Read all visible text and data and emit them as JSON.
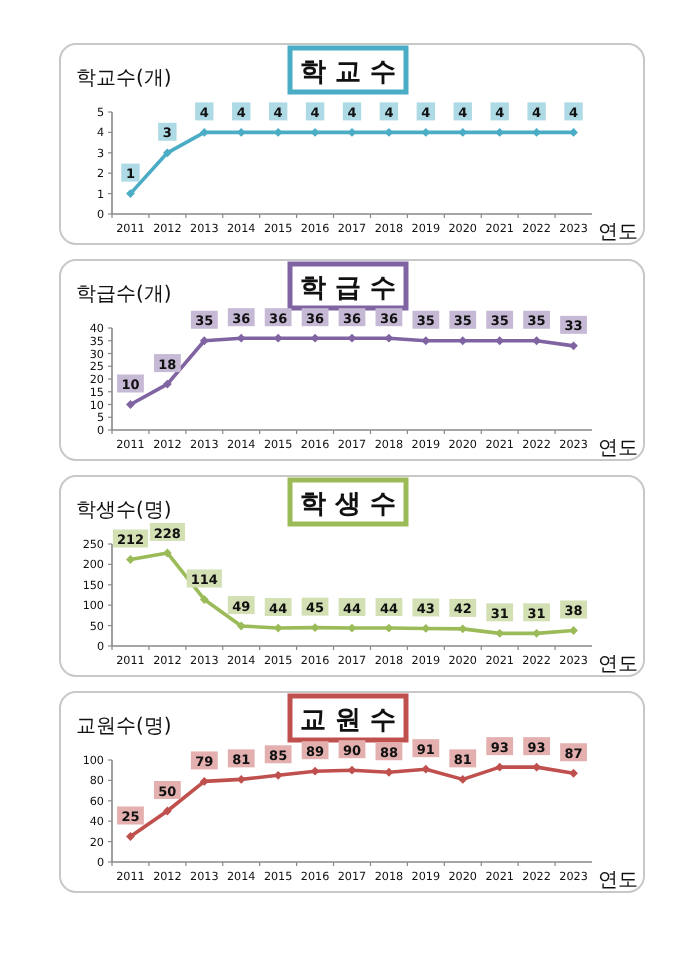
{
  "chart_data": [
    {
      "type": "line",
      "title": "학 교 수",
      "ylabel": "학교수(개)",
      "xlabel": "연도",
      "categories": [
        "2011",
        "2012",
        "2013",
        "2014",
        "2015",
        "2016",
        "2017",
        "2018",
        "2019",
        "2020",
        "2021",
        "2022",
        "2023"
      ],
      "series": [
        {
          "color": "#4bacc6",
          "values": [
            1,
            3,
            4,
            4,
            4,
            4,
            4,
            4,
            4,
            4,
            4,
            4,
            4
          ]
        }
      ],
      "ylim": [
        0,
        5
      ],
      "yticks": [
        0,
        1,
        2,
        3,
        4,
        5
      ],
      "data_labels": true,
      "marker": "diamond"
    },
    {
      "type": "line",
      "title": "학 급 수",
      "ylabel": "학급수(개)",
      "xlabel": "연도",
      "categories": [
        "2011",
        "2012",
        "2013",
        "2014",
        "2015",
        "2016",
        "2017",
        "2018",
        "2019",
        "2020",
        "2021",
        "2022",
        "2023"
      ],
      "series": [
        {
          "color": "#8064a2",
          "values": [
            10,
            18,
            35,
            36,
            36,
            36,
            36,
            36,
            35,
            35,
            35,
            35,
            33
          ]
        }
      ],
      "ylim": [
        0,
        40
      ],
      "yticks": [
        0,
        5,
        10,
        15,
        20,
        25,
        30,
        35,
        40
      ],
      "data_labels": true,
      "marker": "diamond"
    },
    {
      "type": "line",
      "title": "학 생 수",
      "ylabel": "학생수(명)",
      "xlabel": "연도",
      "categories": [
        "2011",
        "2012",
        "2013",
        "2014",
        "2015",
        "2016",
        "2017",
        "2018",
        "2019",
        "2020",
        "2021",
        "2022",
        "2023"
      ],
      "series": [
        {
          "color": "#9bbb59",
          "values": [
            212,
            228,
            114,
            49,
            44,
            45,
            44,
            44,
            43,
            42,
            31,
            31,
            38
          ]
        }
      ],
      "ylim": [
        0,
        250
      ],
      "yticks": [
        0,
        50,
        100,
        150,
        200,
        250
      ],
      "data_labels": true,
      "marker": "diamond"
    },
    {
      "type": "line",
      "title": "교 원 수",
      "ylabel": "교원수(명)",
      "xlabel": "연도",
      "categories": [
        "2011",
        "2012",
        "2013",
        "2014",
        "2015",
        "2016",
        "2017",
        "2018",
        "2019",
        "2020",
        "2021",
        "2022",
        "2023"
      ],
      "series": [
        {
          "color": "#c0504d",
          "values": [
            25,
            50,
            79,
            81,
            85,
            89,
            90,
            88,
            91,
            81,
            93,
            93,
            87
          ]
        }
      ],
      "ylim": [
        0,
        100
      ],
      "yticks": [
        0,
        20,
        40,
        60,
        80,
        100
      ],
      "data_labels": true,
      "marker": "diamond"
    }
  ]
}
